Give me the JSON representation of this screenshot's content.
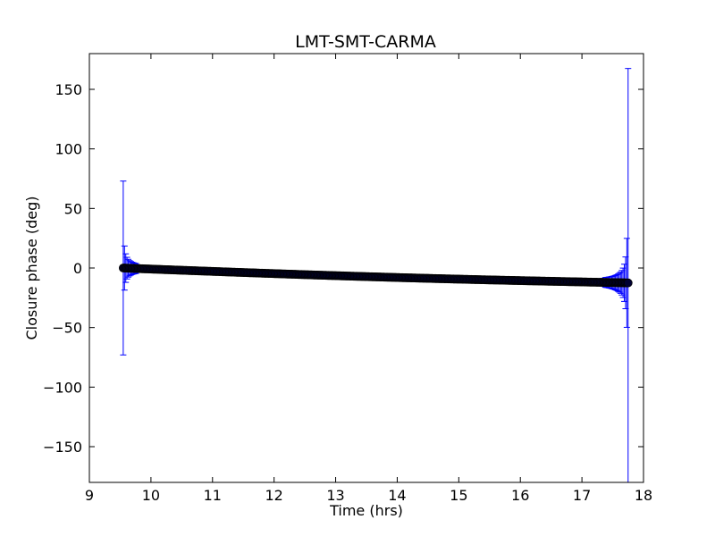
{
  "chart_data": {
    "type": "scatter",
    "title": "LMT-SMT-CARMA",
    "xlabel": "Time (hrs)",
    "ylabel": "Closure phase (deg)",
    "xlim": [
      9,
      18
    ],
    "ylim": [
      -180,
      180
    ],
    "xticks": [
      "9",
      "10",
      "11",
      "12",
      "13",
      "14",
      "15",
      "16",
      "17",
      "18"
    ],
    "yticks": [
      "−150",
      "−100",
      "−50",
      "0",
      "50",
      "100",
      "150"
    ],
    "grid": false,
    "colors": {
      "points": "#000033",
      "errorbars": "#0000ff"
    },
    "series": [
      {
        "x_start": 9.55,
        "x_end": 17.75,
        "y_start": 0.0,
        "y_end": -12.5,
        "count": 400,
        "error_near_start_peak": 73,
        "error_near_end_peak": 180,
        "error_baseline": 1.5
      }
    ]
  }
}
